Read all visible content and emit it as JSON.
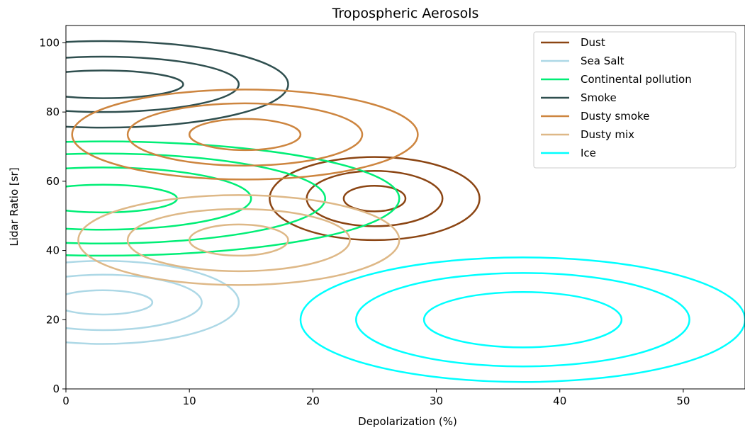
{
  "chart_data": {
    "type": "contour",
    "title": "Tropospheric Aerosols",
    "xlabel": "Depolarization (%)",
    "ylabel": "Lidar Ratio [sr]",
    "xlim": [
      0,
      55
    ],
    "ylim": [
      0,
      105
    ],
    "xticks": [
      0,
      10,
      20,
      30,
      40,
      50
    ],
    "yticks": [
      0,
      20,
      40,
      60,
      80,
      100
    ],
    "grid": false,
    "legend_position": "top-right",
    "series": [
      {
        "name": "Dust",
        "color": "#8b4513",
        "center": [
          25,
          55
        ],
        "contours": [
          {
            "rx": 2.5,
            "ry": 3.7
          },
          {
            "rx": 5.5,
            "ry": 8
          },
          {
            "rx": 8.5,
            "ry": 12
          }
        ]
      },
      {
        "name": "Sea Salt",
        "color": "#add8e6",
        "center": [
          3,
          25
        ],
        "contours": [
          {
            "rx": 4,
            "ry": 3.5
          },
          {
            "rx": 8,
            "ry": 8
          },
          {
            "rx": 11,
            "ry": 12
          }
        ]
      },
      {
        "name": "Continental pollution",
        "color": "#00ee76",
        "center": [
          3,
          55
        ],
        "contours": [
          {
            "rx": 6,
            "ry": 4
          },
          {
            "rx": 12,
            "ry": 9
          },
          {
            "rx": 18,
            "ry": 13
          },
          {
            "rx": 24,
            "ry": 16.5
          }
        ]
      },
      {
        "name": "Smoke",
        "color": "#2f4f4f",
        "center": [
          3,
          88
        ],
        "contours": [
          {
            "rx": 6.5,
            "ry": 4
          },
          {
            "rx": 11,
            "ry": 8
          },
          {
            "rx": 15,
            "ry": 12.5
          }
        ]
      },
      {
        "name": "Dusty smoke",
        "color": "#cd853f",
        "center": [
          14.5,
          73.5
        ],
        "contours": [
          {
            "rx": 4.5,
            "ry": 4.5
          },
          {
            "rx": 9.5,
            "ry": 9
          },
          {
            "rx": 14,
            "ry": 13
          }
        ]
      },
      {
        "name": "Dusty mix",
        "color": "#deb887",
        "center": [
          14,
          43
        ],
        "contours": [
          {
            "rx": 4,
            "ry": 4.5
          },
          {
            "rx": 9,
            "ry": 9
          },
          {
            "rx": 13,
            "ry": 13
          }
        ]
      },
      {
        "name": "Ice",
        "color": "#00ffff",
        "center": [
          37,
          20
        ],
        "contours": [
          {
            "rx": 8,
            "ry": 8
          },
          {
            "rx": 13.5,
            "ry": 13.5
          },
          {
            "rx": 18,
            "ry": 18
          }
        ]
      }
    ]
  }
}
